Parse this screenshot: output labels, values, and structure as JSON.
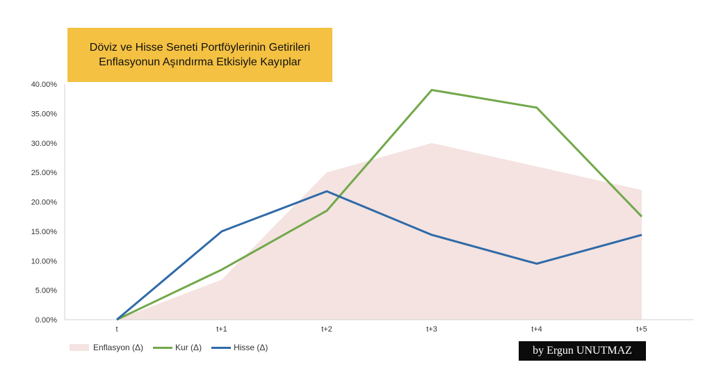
{
  "title": {
    "line1": "Döviz ve Hisse Seneti Portföylerinin Getirileri",
    "line2": "Enflasyonun Aşındırma Etkisiyle Kayıplar"
  },
  "credit": "by Ergun UNUTMAZ",
  "chart_data": {
    "type": "line",
    "categories": [
      "t",
      "t+1",
      "t+2",
      "t+3",
      "t+4",
      "t+5"
    ],
    "yticks": [
      "0.00%",
      "5.00%",
      "10.00%",
      "15.00%",
      "20.00%",
      "25.00%",
      "30.00%",
      "35.00%",
      "40.00%"
    ],
    "ylim": [
      0,
      40
    ],
    "grid": false,
    "legend_position": "bottom-left",
    "series": [
      {
        "name": "Enflasyon  (Δ)",
        "kind": "area",
        "color": "#f4e3e1",
        "values": [
          0,
          6.8,
          25.0,
          30.0,
          26.0,
          22.0
        ]
      },
      {
        "name": "Kur (Δ)",
        "kind": "line",
        "color": "#72a84a",
        "values": [
          0,
          8.5,
          18.5,
          39.0,
          36.0,
          17.5
        ]
      },
      {
        "name": "Hisse (Δ)",
        "kind": "line",
        "color": "#2f6aa8",
        "values": [
          0,
          15.0,
          21.8,
          14.4,
          9.5,
          14.4
        ]
      }
    ]
  }
}
